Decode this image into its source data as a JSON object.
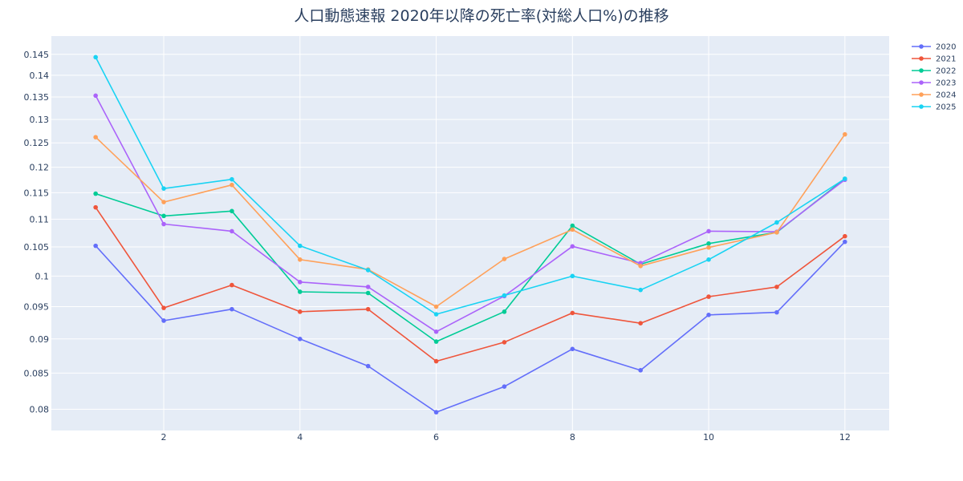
{
  "chart_data": {
    "type": "line",
    "title": "人口動態速報 2020年以降の死亡率(対総人口%)の推移",
    "xlabel": "",
    "ylabel": "",
    "y_scale": "log",
    "x_ticks": [
      2,
      4,
      6,
      8,
      10,
      12
    ],
    "y_ticks": [
      0.08,
      0.085,
      0.09,
      0.095,
      0.1,
      0.105,
      0.11,
      0.115,
      0.12,
      0.125,
      0.13,
      0.135,
      0.14,
      0.145
    ],
    "y_tick_labels": [
      "0.08",
      "0.085",
      "0.09",
      "0.095",
      "0.1",
      "0.105",
      "0.11",
      "0.115",
      "0.12",
      "0.125",
      "0.13",
      "0.135",
      "0.14",
      "0.145"
    ],
    "x_tick_labels": [
      "2",
      "4",
      "6",
      "8",
      "10",
      "12"
    ],
    "grid": true,
    "legend_position": "top-right",
    "x": [
      1,
      2,
      3,
      4,
      5,
      6,
      7,
      8,
      9,
      10,
      11,
      12
    ],
    "series": [
      {
        "name": "2020",
        "color": "#636efa",
        "values": [
          0.1052,
          0.0928,
          0.0946,
          0.09,
          0.086,
          0.0796,
          0.0831,
          0.0885,
          0.0854,
          0.0937,
          0.0941,
          0.1059
        ]
      },
      {
        "name": "2021",
        "color": "#ef553b",
        "values": [
          0.1122,
          0.0948,
          0.0985,
          0.0942,
          0.0946,
          0.0867,
          0.0895,
          0.094,
          0.0924,
          0.0966,
          0.0982,
          0.1069
        ]
      },
      {
        "name": "2022",
        "color": "#00cc96",
        "values": [
          0.1148,
          0.1106,
          0.1115,
          0.0974,
          0.0972,
          0.0896,
          0.0942,
          0.1088,
          0.102,
          0.1056,
          0.1076,
          0.1177
        ]
      },
      {
        "name": "2023",
        "color": "#ab63fa",
        "values": [
          0.1353,
          0.1091,
          0.1078,
          0.099,
          0.0982,
          0.0911,
          0.0967,
          0.1051,
          0.1022,
          0.1078,
          0.1077,
          0.1175
        ]
      },
      {
        "name": "2024",
        "color": "#ffa15a",
        "values": [
          0.1262,
          0.1132,
          0.1165,
          0.1028,
          0.1011,
          0.095,
          0.1029,
          0.1081,
          0.1017,
          0.1049,
          0.1076,
          0.1268
        ]
      },
      {
        "name": "2025",
        "color": "#19d3f3",
        "values": [
          0.1443,
          0.1158,
          0.1176,
          0.1052,
          0.101,
          0.0938,
          0.0968,
          0.1,
          0.0977,
          0.1028,
          0.1094,
          0.1177
        ]
      }
    ]
  }
}
